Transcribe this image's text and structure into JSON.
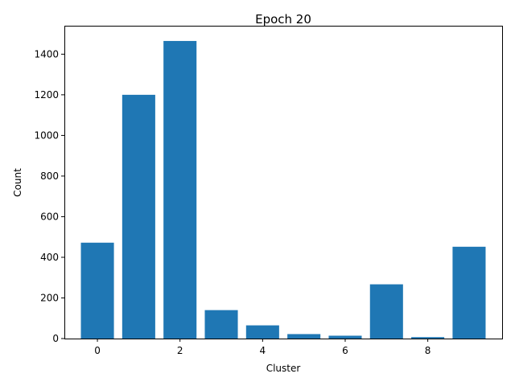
{
  "chart_data": {
    "type": "bar",
    "title": "Epoch 20",
    "xlabel": "Cluster",
    "ylabel": "Count",
    "categories": [
      0,
      1,
      2,
      3,
      4,
      5,
      6,
      7,
      8,
      9
    ],
    "values": [
      472,
      1200,
      1465,
      140,
      65,
      22,
      14,
      267,
      7,
      452
    ],
    "xlim": [
      -0.8,
      9.8
    ],
    "ylim": [
      0,
      1540
    ],
    "xticks": [
      0,
      2,
      4,
      6,
      8
    ],
    "yticks": [
      0,
      200,
      400,
      600,
      800,
      1000,
      1200,
      1400
    ],
    "bar_color": "#1f77b4",
    "grid": false,
    "legend": "none"
  }
}
